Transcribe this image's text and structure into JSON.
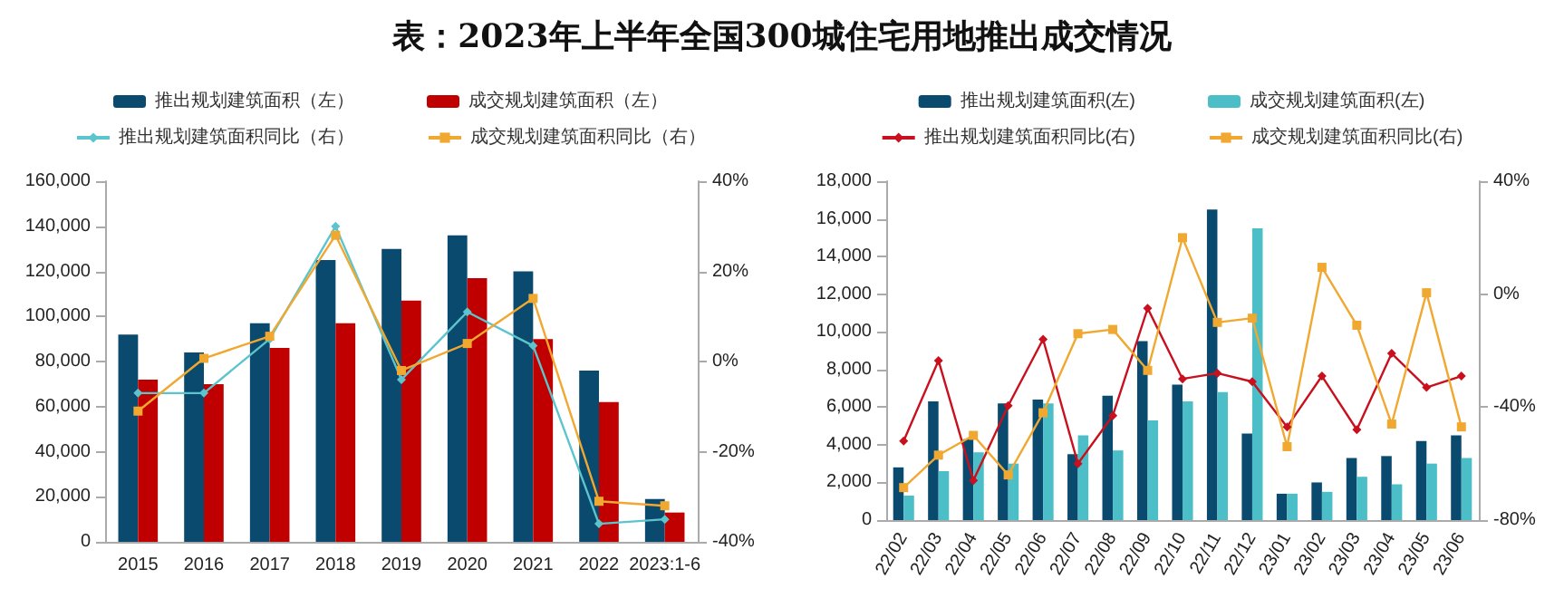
{
  "chart_data": [
    {
      "type": "bar",
      "title": "表：2023年上半年全国300城住宅用地推出成交情况",
      "categories": [
        "2015",
        "2016",
        "2017",
        "2018",
        "2019",
        "2020",
        "2021",
        "2022",
        "2023:1-6"
      ],
      "series": [
        {
          "name": "推出规划建筑面积（左）",
          "color": "#0b4a6f",
          "values": [
            92000,
            84000,
            97000,
            125000,
            130000,
            136000,
            120000,
            76000,
            19000
          ]
        },
        {
          "name": "成交规划建筑面积（左）",
          "color": "#c00000",
          "values": [
            72000,
            70000,
            86000,
            97000,
            107000,
            117000,
            90000,
            62000,
            13000
          ]
        },
        {
          "name": "推出规划建筑面积同比（右）",
          "type": "line",
          "axis": "y2",
          "color": "#5cc4cc",
          "marker": "diamond",
          "values": [
            -7,
            -7,
            5,
            30,
            -4,
            11,
            3.5,
            -36,
            -35
          ]
        },
        {
          "name": "成交规划建筑面积同比（右）",
          "type": "line",
          "axis": "y2",
          "color": "#f0a830",
          "marker": "square",
          "values": [
            -11,
            0.7,
            5.6,
            28,
            -2,
            4,
            14,
            -31,
            -32
          ]
        }
      ],
      "ylim": [
        0,
        160000
      ],
      "yticks": [
        0,
        {
          "value": 20000,
          "label": "20,000"
        },
        {
          "value": 40000,
          "label": "40,000"
        },
        {
          "value": 60000,
          "label": "60,000"
        },
        {
          "value": 80000,
          "label": "80,000"
        },
        {
          "value": 100000,
          "label": "100,000"
        },
        {
          "value": 120000,
          "label": "120,000"
        },
        {
          "value": 140000,
          "label": "140,000"
        },
        {
          "value": 160000,
          "label": "160,000"
        }
      ],
      "y2lim": [
        -40,
        40
      ],
      "y2ticks": [
        {
          "value": -40,
          "label": "-40%"
        },
        {
          "value": -20,
          "label": "-20%"
        },
        {
          "value": 0,
          "label": "0%"
        },
        {
          "value": 20,
          "label": "20%"
        },
        {
          "value": 40,
          "label": "40%"
        }
      ],
      "legend": "top",
      "grid": false
    },
    {
      "type": "bar",
      "categories": [
        "22/02",
        "22/03",
        "22/04",
        "22/05",
        "22/06",
        "22/07",
        "22/08",
        "22/09",
        "22/10",
        "22/11",
        "22/12",
        "23/01",
        "23/02",
        "23/03",
        "23/04",
        "23/05",
        "23/06"
      ],
      "series": [
        {
          "name": "推出规划建筑面积(左)",
          "color": "#0b4a6f",
          "values": [
            2800,
            6300,
            4300,
            6200,
            6400,
            3500,
            6600,
            9500,
            7200,
            16500,
            4600,
            1400,
            2000,
            3300,
            3400,
            4200,
            4500
          ]
        },
        {
          "name": "成交规划建筑面积(左)",
          "color": "#4bbec8",
          "values": [
            1300,
            2600,
            3600,
            3000,
            6200,
            4500,
            3700,
            5300,
            6300,
            6800,
            15500,
            1400,
            1500,
            2300,
            1900,
            3000,
            3300
          ]
        },
        {
          "name": "推出规划建筑面积同比(右)",
          "type": "line",
          "axis": "y2",
          "color": "#c8101e",
          "marker": "diamond",
          "values": [
            -52,
            -23.5,
            -66,
            -39.5,
            -16,
            -60,
            -43,
            -5,
            -30,
            -28,
            -31,
            -47,
            -29,
            -48,
            -21,
            -33,
            -29
          ]
        },
        {
          "name": "成交规划建筑面积同比(右)",
          "type": "line",
          "axis": "y2",
          "color": "#f0a830",
          "marker": "square",
          "values": [
            -68.5,
            -57,
            -50,
            -64,
            -42,
            -14,
            -12.5,
            -27,
            20,
            -10,
            -8.5,
            -54,
            9.5,
            -11,
            -46,
            0.5,
            -47
          ]
        }
      ],
      "ylim": [
        0,
        18000
      ],
      "yticks": [
        0,
        {
          "value": 2000,
          "label": "2,000"
        },
        {
          "value": 4000,
          "label": "4,000"
        },
        {
          "value": 6000,
          "label": "6,000"
        },
        {
          "value": 8000,
          "label": "8,000"
        },
        {
          "value": 10000,
          "label": "10,000"
        },
        {
          "value": 12000,
          "label": "12,000"
        },
        {
          "value": 14000,
          "label": "14,000"
        },
        {
          "value": 16000,
          "label": "16,000"
        },
        {
          "value": 18000,
          "label": "18,000"
        }
      ],
      "y2lim": [
        -80,
        40
      ],
      "y2ticks": [
        {
          "value": -80,
          "label": "-80%"
        },
        {
          "value": -40,
          "label": "-40%"
        },
        {
          "value": 0,
          "label": "0%"
        },
        {
          "value": 40,
          "label": "40%"
        }
      ],
      "legend": "top",
      "grid": false
    }
  ]
}
